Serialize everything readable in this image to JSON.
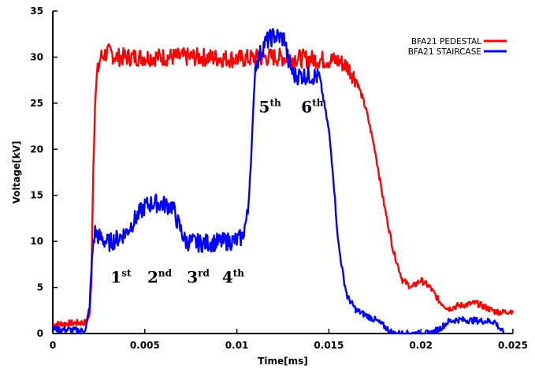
{
  "chart_data": {
    "type": "line",
    "title": "",
    "xlabel": "Time[ms]",
    "ylabel": "Voltage[kV]",
    "xlim": [
      0,
      0.025
    ],
    "ylim": [
      0,
      35
    ],
    "x_ticks": [
      0,
      0.005,
      0.01,
      0.015,
      0.02,
      0.025
    ],
    "x_tick_labels": [
      "0",
      "0.005",
      "0.01",
      "0.015",
      "0.02",
      "0.025"
    ],
    "y_ticks": [
      0,
      5,
      10,
      15,
      20,
      25,
      30,
      35
    ],
    "y_tick_labels": [
      "0",
      "5",
      "10",
      "15",
      "20",
      "25",
      "30",
      "35"
    ],
    "grid": false,
    "legend_position": "top-right",
    "series": [
      {
        "name": "BFA21 PEDESTAL",
        "color": "#ff0000",
        "x": [
          0,
          0.0018,
          0.002,
          0.0021,
          0.0022,
          0.0023,
          0.0024,
          0.0026,
          0.003,
          0.0035,
          0.0042,
          0.005,
          0.006,
          0.008,
          0.01,
          0.012,
          0.014,
          0.0155,
          0.016,
          0.0165,
          0.017,
          0.0175,
          0.018,
          0.0185,
          0.019,
          0.0195,
          0.02,
          0.0205,
          0.021,
          0.0215,
          0.022,
          0.023,
          0.024,
          0.0245,
          0.025
        ],
        "y": [
          1.0,
          1.2,
          2.0,
          6.0,
          18.0,
          25.0,
          28.0,
          30.0,
          30.5,
          30.0,
          30.0,
          30.0,
          30.0,
          30.0,
          29.8,
          30.0,
          29.8,
          29.6,
          29.0,
          27.5,
          24.5,
          20.0,
          14.0,
          9.0,
          5.8,
          5.0,
          5.8,
          5.0,
          3.5,
          2.7,
          3.0,
          3.3,
          2.4,
          2.3,
          2.5
        ]
      },
      {
        "name": "BFA21 STAIRCASE",
        "color": "#0000ff",
        "x": [
          0,
          0.0016,
          0.0018,
          0.002,
          0.0021,
          0.0022,
          0.0023,
          0.0025,
          0.003,
          0.0035,
          0.004,
          0.0045,
          0.005,
          0.0055,
          0.006,
          0.0065,
          0.0068,
          0.0072,
          0.008,
          0.009,
          0.01,
          0.0103,
          0.0106,
          0.0108,
          0.011,
          0.0115,
          0.012,
          0.0126,
          0.0128,
          0.0131,
          0.0135,
          0.014,
          0.0145,
          0.015,
          0.0152,
          0.0155,
          0.0158,
          0.016,
          0.0165,
          0.017,
          0.0175,
          0.018,
          0.0185,
          0.0195,
          0.02,
          0.0205,
          0.021,
          0.0215,
          0.022,
          0.023,
          0.024,
          0.0245
        ],
        "y": [
          0.5,
          0.3,
          0.5,
          3.0,
          7.0,
          10.0,
          11.0,
          10.5,
          9.8,
          10.3,
          11.0,
          12.5,
          13.8,
          14.2,
          14.0,
          13.8,
          12.0,
          10.0,
          9.8,
          9.9,
          10.1,
          10.5,
          13.0,
          20.0,
          29.0,
          31.5,
          32.3,
          32.0,
          29.5,
          28.0,
          28.0,
          28.0,
          27.8,
          22.0,
          18.0,
          10.0,
          6.0,
          4.0,
          2.5,
          2.0,
          1.5,
          0.8,
          0.0,
          0.0,
          0.0,
          0.0,
          0.5,
          1.3,
          1.5,
          1.4,
          1.3,
          0.0
        ]
      }
    ],
    "annotations": [
      {
        "base": "1",
        "sup": "st",
        "x": 0.0037,
        "y": 5.5
      },
      {
        "base": "2",
        "sup": "nd",
        "x": 0.0058,
        "y": 5.5
      },
      {
        "base": "3",
        "sup": "rd",
        "x": 0.0079,
        "y": 5.5
      },
      {
        "base": "4",
        "sup": "th",
        "x": 0.0098,
        "y": 5.5
      },
      {
        "base": "5",
        "sup": "th",
        "x": 0.0118,
        "y": 24.0
      },
      {
        "base": "6",
        "sup": "th",
        "x": 0.0141,
        "y": 24.0
      }
    ]
  }
}
